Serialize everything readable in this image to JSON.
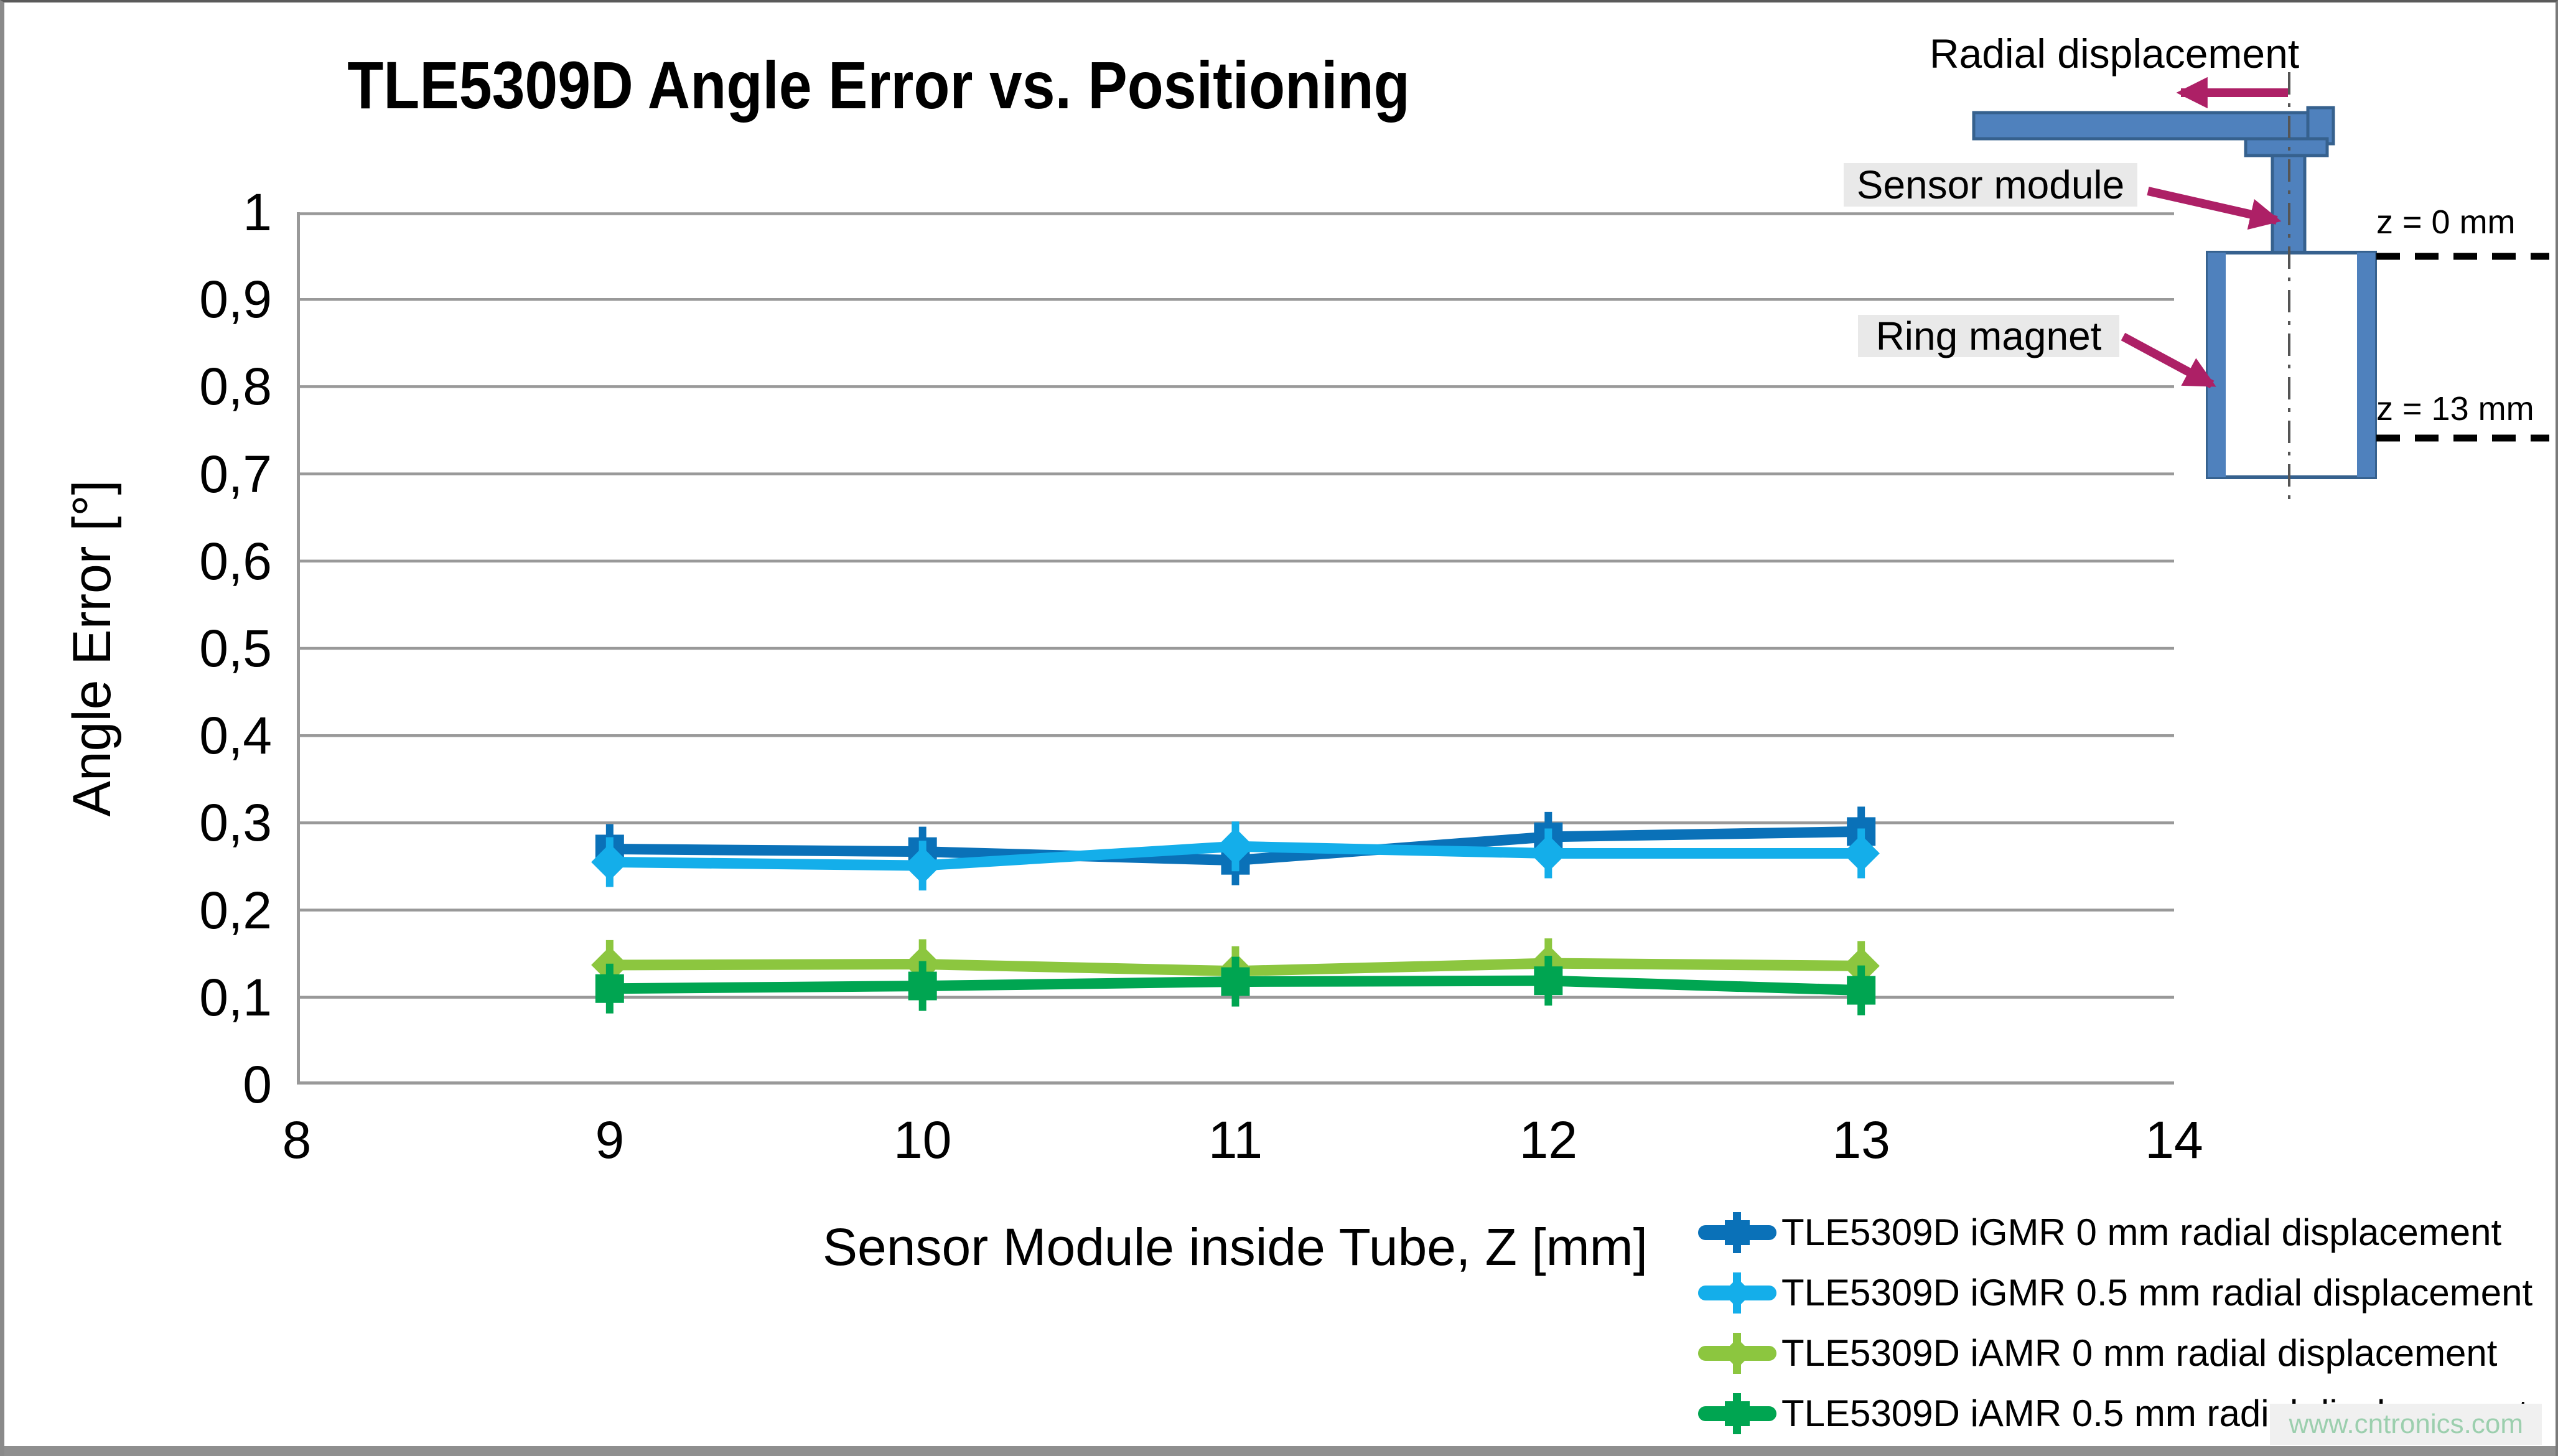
{
  "page": {
    "watermark": "www.cntronics.com"
  },
  "colors": {
    "series_igmr_0mm": "#0a71b8",
    "series_igmr_05mm": "#14aeea",
    "series_iamr_0mm": "#8cc63f",
    "series_iamr_05mm": "#00a551",
    "grid": "#999999",
    "inset_fill": "#4f81bd",
    "inset_stroke": "#36618e",
    "annotation_arrow": "#ad2066",
    "label_bg": "#e9e9e9",
    "watermark": "#9ccfae",
    "frame": "#8f8f8f"
  },
  "chart_data": {
    "type": "line",
    "title": "TLE5309D Angle Error vs. Positioning",
    "xlabel": "Sensor Module inside Tube, Z [mm]",
    "ylabel": "Angle Error [°]",
    "xlim": [
      8,
      14
    ],
    "ylim": [
      0,
      1
    ],
    "grid": true,
    "legend_position": "bottom-right",
    "x_tick_values": [
      8,
      9,
      10,
      11,
      12,
      13,
      14
    ],
    "x_tick_labels": [
      "8",
      "9",
      "10",
      "11",
      "12",
      "13",
      "14"
    ],
    "y_tick_values": [
      0,
      0.1,
      0.2,
      0.3,
      0.4,
      0.5,
      0.6,
      0.7,
      0.8,
      0.9,
      1
    ],
    "y_tick_labels": [
      "0",
      "0,1",
      "0,2",
      "0,3",
      "0,4",
      "0,5",
      "0,6",
      "0,7",
      "0,8",
      "0,9",
      "1"
    ],
    "x": [
      9,
      10,
      11,
      12,
      13
    ],
    "series": [
      {
        "name": "TLE5309D iGMR 0 mm radial displacement",
        "marker": "square",
        "color": "#0a71b8",
        "values": [
          0.27,
          0.267,
          0.257,
          0.284,
          0.29
        ]
      },
      {
        "name": "TLE5309D iGMR 0.5 mm radial displacement",
        "marker": "diamond",
        "color": "#14aeea",
        "values": [
          0.255,
          0.251,
          0.273,
          0.265,
          0.265
        ]
      },
      {
        "name": "TLE5309D iAMR 0 mm radial displacement",
        "marker": "diamond",
        "color": "#8cc63f",
        "values": [
          0.137,
          0.138,
          0.13,
          0.139,
          0.136
        ]
      },
      {
        "name": "TLE5309D iAMR 0.5 mm radial displacement",
        "marker": "square",
        "color": "#00a551",
        "values": [
          0.11,
          0.113,
          0.118,
          0.119,
          0.108
        ]
      }
    ]
  },
  "inset": {
    "radial_displacement_label": "Radial displacement",
    "sensor_module_label": "Sensor module",
    "ring_magnet_label": "Ring magnet",
    "z_top_label": "z = 0 mm",
    "z_bottom_label": "z = 13 mm"
  }
}
